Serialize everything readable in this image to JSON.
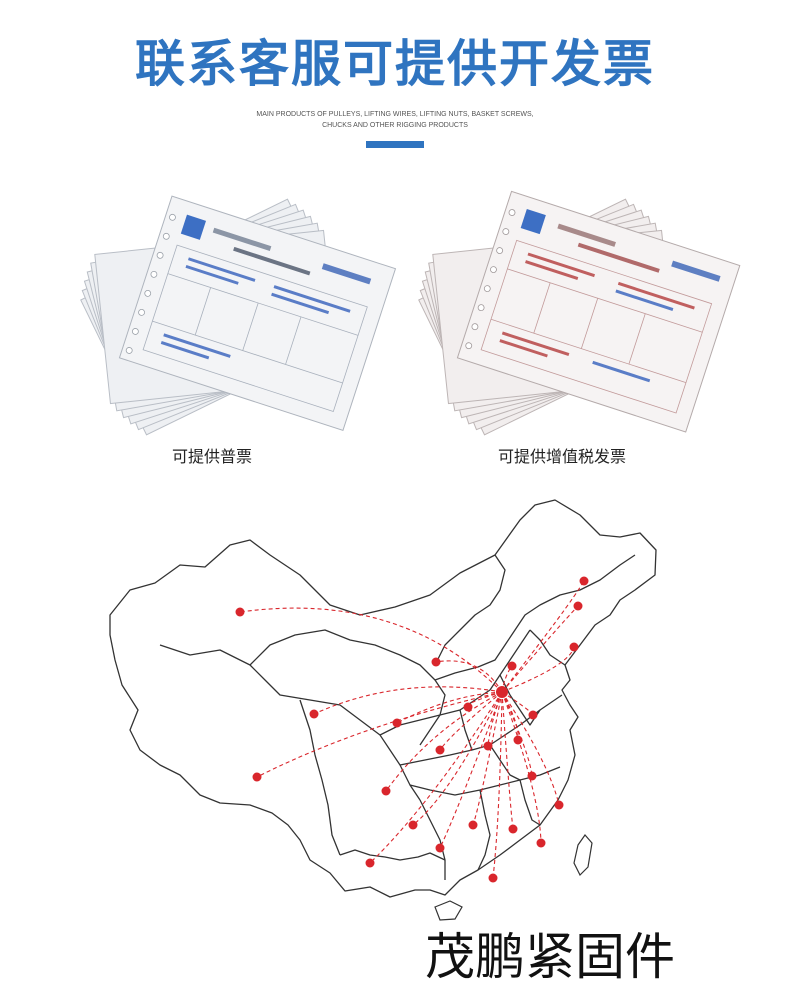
{
  "header": {
    "title": "联系客服可提供开发票",
    "subtitle_line1": "MAIN PRODUCTS OF PULLEYS, LIFTING WIRES, LIFTING NUTS, BASKET SCREWS,",
    "subtitle_line2": "CHUCKS AND OTHER RIGGING PRODUCTS"
  },
  "invoices": {
    "left_caption": "可提供普票",
    "right_caption": "可提供增值税发票"
  },
  "map": {
    "line_color": "#d9262c",
    "border_color": "#333333"
  },
  "brand": {
    "name": "茂鹏紧固件"
  },
  "colors": {
    "accent": "#2f74c0"
  }
}
